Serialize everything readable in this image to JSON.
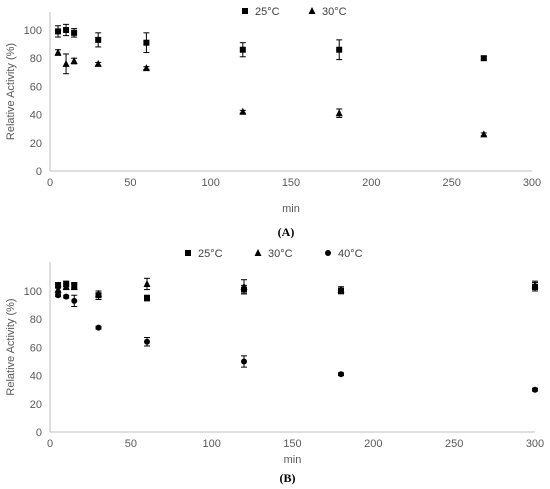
{
  "chart_data": [
    {
      "type": "scatter",
      "panel_label": "(A)",
      "xlabel": "min",
      "ylabel": "Relative Activity (%)",
      "xlim": [
        0,
        300
      ],
      "ylim": [
        0,
        100
      ],
      "xticks": [
        "0",
        "50",
        "100",
        "150",
        "200",
        "250",
        "300"
      ],
      "yticks": [
        "0",
        "20",
        "40",
        "60",
        "80",
        "100"
      ],
      "legend_position": "top-center",
      "grid": false,
      "series": [
        {
          "name": "25°C",
          "marker": "square",
          "points": [
            {
              "x": 5,
              "y": 99,
              "err": 4
            },
            {
              "x": 10,
              "y": 100,
              "err": 4
            },
            {
              "x": 15,
              "y": 98,
              "err": 3
            },
            {
              "x": 30,
              "y": 93,
              "err": 5
            },
            {
              "x": 60,
              "y": 91,
              "err": 7
            },
            {
              "x": 120,
              "y": 86,
              "err": 5
            },
            {
              "x": 180,
              "y": 86,
              "err": 7
            },
            {
              "x": 270,
              "y": 80,
              "err": 1.5
            }
          ]
        },
        {
          "name": "30°C",
          "marker": "triangle",
          "points": [
            {
              "x": 5,
              "y": 84,
              "err": 2
            },
            {
              "x": 10,
              "y": 76,
              "err": 7
            },
            {
              "x": 15,
              "y": 78,
              "err": 2
            },
            {
              "x": 30,
              "y": 76,
              "err": 1
            },
            {
              "x": 60,
              "y": 73,
              "err": 1
            },
            {
              "x": 120,
              "y": 42,
              "err": 1
            },
            {
              "x": 180,
              "y": 41,
              "err": 3
            },
            {
              "x": 270,
              "y": 26,
              "err": 1
            }
          ]
        }
      ]
    },
    {
      "type": "scatter",
      "panel_label": "(B)",
      "xlabel": "min",
      "ylabel": "Relative Activity (%)",
      "xlim": [
        0,
        300
      ],
      "ylim": [
        0,
        100
      ],
      "xticks": [
        "0",
        "50",
        "100",
        "150",
        "200",
        "250",
        "300"
      ],
      "yticks": [
        "0",
        "20",
        "40",
        "60",
        "80",
        "100"
      ],
      "legend_position": "top-center",
      "grid": false,
      "series": [
        {
          "name": "25°C",
          "marker": "square",
          "points": [
            {
              "x": 5,
              "y": 104,
              "err": 2
            },
            {
              "x": 10,
              "y": 105,
              "err": 2
            },
            {
              "x": 15,
              "y": 104,
              "err": 2
            },
            {
              "x": 30,
              "y": 97,
              "err": 3
            },
            {
              "x": 60,
              "y": 95,
              "err": 2
            },
            {
              "x": 120,
              "y": 101,
              "err": 3
            },
            {
              "x": 180,
              "y": 100,
              "err": 2
            },
            {
              "x": 300,
              "y": 103,
              "err": 3
            }
          ]
        },
        {
          "name": "30°C",
          "marker": "triangle",
          "points": [
            {
              "x": 5,
              "y": 101,
              "err": 2
            },
            {
              "x": 10,
              "y": 103,
              "err": 2
            },
            {
              "x": 15,
              "y": 103,
              "err": 2
            },
            {
              "x": 30,
              "y": 98,
              "err": 2
            },
            {
              "x": 60,
              "y": 105,
              "err": 4
            },
            {
              "x": 120,
              "y": 103,
              "err": 5
            },
            {
              "x": 180,
              "y": 101,
              "err": 2
            },
            {
              "x": 300,
              "y": 104,
              "err": 3
            }
          ]
        },
        {
          "name": "40°C",
          "marker": "circle",
          "points": [
            {
              "x": 5,
              "y": 97,
              "err": 1
            },
            {
              "x": 10,
              "y": 96,
              "err": 1
            },
            {
              "x": 15,
              "y": 93,
              "err": 4
            },
            {
              "x": 30,
              "y": 74,
              "err": 1
            },
            {
              "x": 60,
              "y": 64,
              "err": 3
            },
            {
              "x": 120,
              "y": 50,
              "err": 4
            },
            {
              "x": 180,
              "y": 41,
              "err": 1
            },
            {
              "x": 300,
              "y": 30,
              "err": 1
            }
          ]
        }
      ]
    }
  ],
  "colors": {
    "marker": "#000000",
    "axis": "#bfbfbf",
    "tick_text": "#595959",
    "legend_text": "#404040"
  }
}
